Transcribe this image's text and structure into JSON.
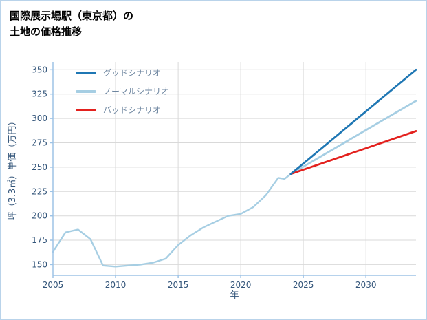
{
  "header": {
    "title_line1": "国際展示場駅（東京都）の",
    "title_line2": "土地の価格推移"
  },
  "chart_data": {
    "type": "line",
    "title": "国際展示場駅（東京都）の土地の価格推移",
    "xlabel": "年",
    "ylabel": "坪（3.3㎡）単価（万円）",
    "xlim": [
      2005,
      2034
    ],
    "ylim": [
      139,
      358
    ],
    "xticks": [
      2005,
      2010,
      2015,
      2020,
      2025,
      2030
    ],
    "yticks": [
      150,
      175,
      200,
      225,
      250,
      275,
      300,
      325,
      350
    ],
    "grid": true,
    "legend_position": "upper-left",
    "colors": {
      "grid": "#d9d9d9",
      "axis": "#9dc3e6",
      "tick_label": "#33557a",
      "frame_border": "#b9d3ea"
    },
    "history": {
      "color": "#a6cee3",
      "x": [
        2005,
        2006,
        2007,
        2008,
        2009,
        2010,
        2011,
        2012,
        2013,
        2014,
        2015,
        2016,
        2017,
        2018,
        2019,
        2020,
        2021,
        2022,
        2023,
        2023.5,
        2024
      ],
      "values": [
        163,
        183,
        186,
        176,
        149,
        148,
        149,
        150,
        152,
        156,
        170,
        180,
        188,
        194,
        200,
        202,
        209,
        221,
        239,
        238,
        243
      ]
    },
    "series": [
      {
        "name": "グッドシナリオ",
        "color": "#1f77b4",
        "x": [
          2024,
          2034
        ],
        "values": [
          243,
          350
        ]
      },
      {
        "name": "ノーマルシナリオ",
        "color": "#a6cee3",
        "x": [
          2024,
          2034
        ],
        "values": [
          243,
          318
        ]
      },
      {
        "name": "バッドシナリオ",
        "color": "#e3211e",
        "x": [
          2024,
          2034
        ],
        "values": [
          243,
          287
        ]
      }
    ]
  }
}
